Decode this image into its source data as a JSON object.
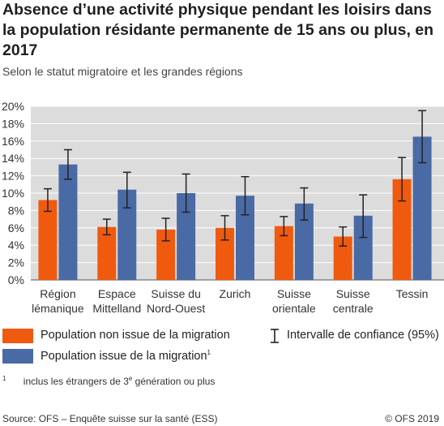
{
  "header": {
    "title": "Absence d’une activité physique pendant les loisirs dans la population résidante permanente de 15 ans ou plus, en 2017",
    "subtitle": "Selon le statut migratoire et les grandes régions"
  },
  "chart_data": {
    "type": "bar",
    "categories": [
      [
        "Région",
        "lémanique"
      ],
      [
        "Espace",
        "Mittelland"
      ],
      [
        "Suisse du",
        "Nord-Ouest"
      ],
      [
        "Zurich"
      ],
      [
        "Suisse",
        "orientale"
      ],
      [
        "Suisse",
        "centrale"
      ],
      [
        "Tessin"
      ]
    ],
    "series": [
      {
        "name": "Population non issue de la migration",
        "color": "#f05a0f",
        "values": [
          9.2,
          6.1,
          5.8,
          6.0,
          6.2,
          5.0,
          11.6
        ],
        "ci_low": [
          7.9,
          5.2,
          4.5,
          4.6,
          5.1,
          3.9,
          9.1
        ],
        "ci_high": [
          10.5,
          7.0,
          7.1,
          7.4,
          7.3,
          6.1,
          14.1
        ]
      },
      {
        "name": "Population issue de la migration",
        "name_sup": "1",
        "color": "#4a6aa5",
        "values": [
          13.3,
          10.4,
          10.0,
          9.7,
          8.8,
          7.4,
          16.5
        ],
        "ci_low": [
          11.6,
          8.3,
          7.8,
          7.5,
          6.9,
          4.9,
          13.5
        ],
        "ci_high": [
          15.0,
          12.4,
          12.2,
          11.9,
          10.6,
          9.8,
          19.5
        ]
      }
    ],
    "ylim": [
      0,
      20
    ],
    "yticks": [
      "0%",
      "2%",
      "4%",
      "6%",
      "8%",
      "10%",
      "12%",
      "14%",
      "16%",
      "18%",
      "20%"
    ],
    "grid": true,
    "legend": "bottom",
    "ci_label": "Intervalle de confiance (95%)"
  },
  "footnote": {
    "marker": "1",
    "text_before": "inclus les étrangers de 3",
    "text_sup": "e",
    "text_after": " génération ou plus"
  },
  "footer": {
    "source": "Source: OFS – Enquête suisse sur la santé (ESS)",
    "copyright": "© OFS 2019"
  }
}
